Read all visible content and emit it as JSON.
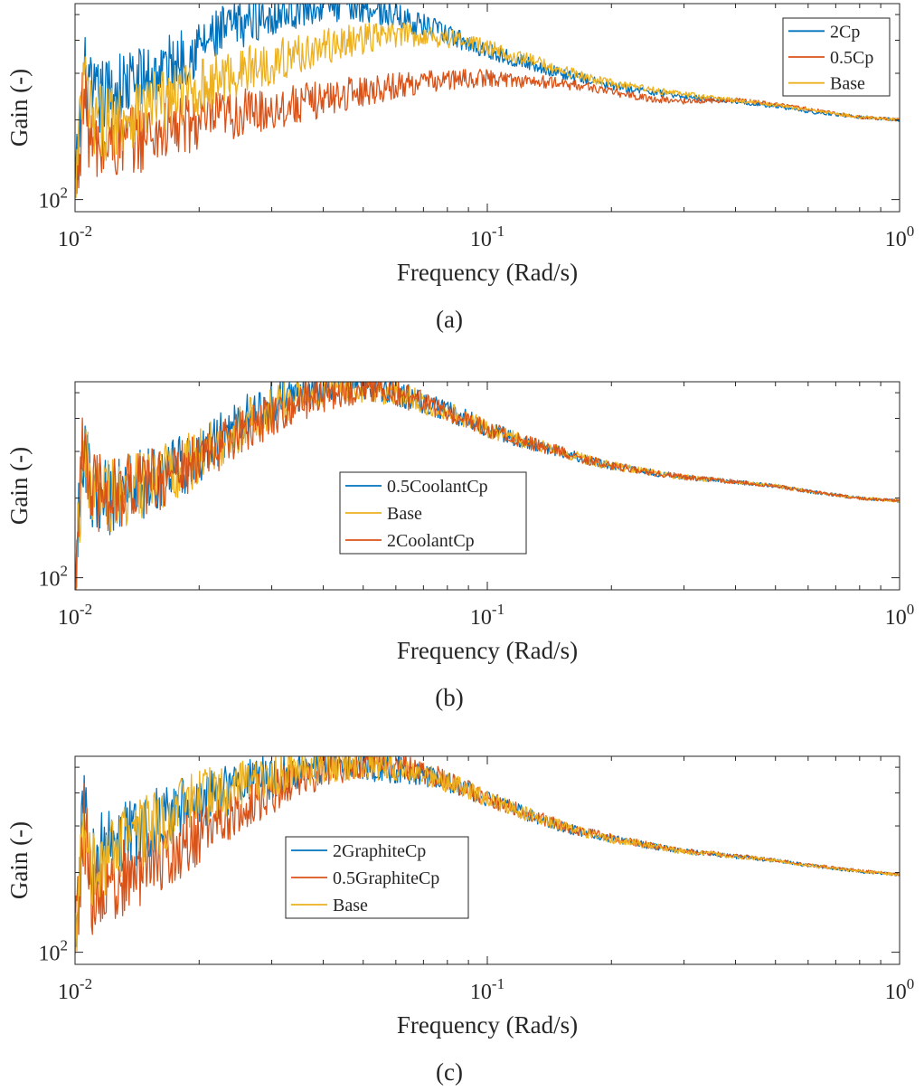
{
  "figure": {
    "colors": {
      "blue": "#0072BD",
      "orange": "#D95319",
      "yellow": "#EDB120",
      "axis": "#262626"
    }
  },
  "chart_data": [
    {
      "type": "line",
      "panel_label": "(a)",
      "xlabel": "Frequency (Rad/s)",
      "ylabel": "Gain (-)",
      "xscale": "log",
      "yscale": "log",
      "xlim": [
        0.01,
        1
      ],
      "ylim": [
        90,
        550
      ],
      "xticks": [
        {
          "base": "10",
          "exp": "-2"
        },
        {
          "base": "10",
          "exp": "-1"
        },
        {
          "base": "10",
          "exp": "0"
        }
      ],
      "yticks": [
        {
          "base": "10",
          "exp": "2"
        }
      ],
      "legend_position": "top-right",
      "series": [
        {
          "name": "2Cp",
          "color": "#0072BD",
          "x": [
            0.01,
            0.0105,
            0.011,
            0.012,
            0.013,
            0.015,
            0.017,
            0.02,
            0.023,
            0.026,
            0.03,
            0.035,
            0.04,
            0.045,
            0.05,
            0.056,
            0.063,
            0.07,
            0.08,
            0.09,
            0.1,
            0.12,
            0.15,
            0.18,
            0.2,
            0.25,
            0.3,
            0.4,
            0.5,
            0.6,
            0.8,
            1.0
          ],
          "y": [
            100,
            300,
            230,
            250,
            265,
            290,
            320,
            380,
            430,
            470,
            505,
            530,
            545,
            545,
            535,
            510,
            480,
            455,
            420,
            390,
            365,
            335,
            300,
            280,
            268,
            255,
            245,
            235,
            225,
            215,
            205,
            200
          ]
        },
        {
          "name": "0.5Cp",
          "color": "#D95319",
          "x": [
            0.01,
            0.0105,
            0.011,
            0.012,
            0.013,
            0.015,
            0.017,
            0.02,
            0.023,
            0.026,
            0.03,
            0.035,
            0.04,
            0.045,
            0.05,
            0.056,
            0.063,
            0.07,
            0.08,
            0.09,
            0.1,
            0.12,
            0.15,
            0.18,
            0.2,
            0.25,
            0.3,
            0.4,
            0.5,
            0.6,
            0.8,
            1.0
          ],
          "y": [
            95,
            260,
            150,
            160,
            165,
            175,
            185,
            195,
            205,
            212,
            220,
            230,
            240,
            250,
            258,
            265,
            272,
            278,
            283,
            286,
            288,
            282,
            275,
            265,
            255,
            240,
            235,
            238,
            230,
            220,
            205,
            200
          ]
        },
        {
          "name": "Base",
          "color": "#EDB120",
          "x": [
            0.01,
            0.0105,
            0.011,
            0.012,
            0.013,
            0.015,
            0.017,
            0.02,
            0.023,
            0.026,
            0.03,
            0.035,
            0.04,
            0.045,
            0.05,
            0.056,
            0.063,
            0.07,
            0.08,
            0.09,
            0.1,
            0.12,
            0.15,
            0.18,
            0.2,
            0.25,
            0.3,
            0.4,
            0.5,
            0.6,
            0.8,
            1.0
          ],
          "y": [
            100,
            290,
            190,
            200,
            210,
            225,
            240,
            265,
            290,
            310,
            330,
            355,
            375,
            392,
            405,
            415,
            420,
            418,
            410,
            395,
            375,
            345,
            310,
            285,
            275,
            260,
            250,
            237,
            228,
            218,
            205,
            200
          ]
        }
      ]
    },
    {
      "type": "line",
      "panel_label": "(b)",
      "xlabel": "Frequency (Rad/s)",
      "ylabel": "Gain (-)",
      "xscale": "log",
      "yscale": "log",
      "xlim": [
        0.01,
        1
      ],
      "ylim": [
        90,
        550
      ],
      "xticks": [
        {
          "base": "10",
          "exp": "-2"
        },
        {
          "base": "10",
          "exp": "-1"
        },
        {
          "base": "10",
          "exp": "0"
        }
      ],
      "yticks": [
        {
          "base": "10",
          "exp": "2"
        }
      ],
      "legend_position": "center-left",
      "series": [
        {
          "name": "0.5CoolantCp",
          "color": "#0072BD",
          "x": [
            0.01,
            0.0105,
            0.011,
            0.012,
            0.013,
            0.015,
            0.017,
            0.02,
            0.023,
            0.026,
            0.03,
            0.035,
            0.04,
            0.045,
            0.05,
            0.056,
            0.063,
            0.07,
            0.08,
            0.09,
            0.1,
            0.12,
            0.15,
            0.18,
            0.2,
            0.25,
            0.3,
            0.4,
            0.5,
            0.6,
            0.8,
            1.0
          ],
          "y": [
            95,
            330,
            190,
            200,
            215,
            230,
            255,
            290,
            340,
            400,
            455,
            500,
            530,
            540,
            535,
            515,
            490,
            460,
            425,
            395,
            365,
            330,
            300,
            275,
            265,
            250,
            240,
            230,
            222,
            212,
            200,
            195
          ]
        },
        {
          "name": "Base",
          "color": "#EDB120",
          "x": [
            0.01,
            0.0105,
            0.011,
            0.012,
            0.013,
            0.015,
            0.017,
            0.02,
            0.023,
            0.026,
            0.03,
            0.035,
            0.04,
            0.045,
            0.05,
            0.056,
            0.063,
            0.07,
            0.08,
            0.09,
            0.1,
            0.12,
            0.15,
            0.18,
            0.2,
            0.25,
            0.3,
            0.4,
            0.5,
            0.6,
            0.8,
            1.0
          ],
          "y": [
            100,
            320,
            200,
            205,
            215,
            230,
            250,
            285,
            330,
            385,
            435,
            480,
            510,
            525,
            525,
            510,
            485,
            458,
            425,
            395,
            365,
            330,
            300,
            275,
            265,
            250,
            240,
            230,
            222,
            212,
            200,
            195
          ]
        },
        {
          "name": "2CoolantCp",
          "color": "#D95319",
          "x": [
            0.01,
            0.0105,
            0.011,
            0.012,
            0.013,
            0.015,
            0.017,
            0.02,
            0.023,
            0.026,
            0.03,
            0.035,
            0.04,
            0.045,
            0.05,
            0.056,
            0.063,
            0.07,
            0.08,
            0.09,
            0.1,
            0.12,
            0.15,
            0.18,
            0.2,
            0.25,
            0.3,
            0.4,
            0.5,
            0.6,
            0.8,
            1.0
          ],
          "y": [
            105,
            340,
            205,
            210,
            215,
            228,
            245,
            275,
            315,
            365,
            415,
            460,
            495,
            515,
            520,
            510,
            485,
            458,
            425,
            395,
            365,
            330,
            300,
            275,
            265,
            250,
            240,
            230,
            222,
            212,
            200,
            195
          ]
        }
      ]
    },
    {
      "type": "line",
      "panel_label": "(c)",
      "xlabel": "Frequency (Rad/s)",
      "ylabel": "Gain (-)",
      "xscale": "log",
      "yscale": "log",
      "xlim": [
        0.01,
        1
      ],
      "ylim": [
        90,
        550
      ],
      "xticks": [
        {
          "base": "10",
          "exp": "-2"
        },
        {
          "base": "10",
          "exp": "-1"
        },
        {
          "base": "10",
          "exp": "0"
        }
      ],
      "yticks": [
        {
          "base": "10",
          "exp": "2"
        }
      ],
      "legend_position": "center-left",
      "series": [
        {
          "name": "2GraphiteCp",
          "color": "#0072BD",
          "x": [
            0.01,
            0.0105,
            0.011,
            0.012,
            0.013,
            0.015,
            0.017,
            0.02,
            0.023,
            0.026,
            0.03,
            0.035,
            0.04,
            0.045,
            0.05,
            0.056,
            0.063,
            0.07,
            0.08,
            0.09,
            0.1,
            0.12,
            0.15,
            0.18,
            0.2,
            0.25,
            0.3,
            0.4,
            0.5,
            0.6,
            0.8,
            1.0
          ],
          "y": [
            120,
            330,
            230,
            255,
            275,
            300,
            330,
            370,
            400,
            430,
            460,
            490,
            505,
            510,
            505,
            495,
            485,
            470,
            440,
            410,
            380,
            340,
            300,
            278,
            268,
            252,
            240,
            230,
            222,
            213,
            202,
            196
          ]
        },
        {
          "name": "0.5GraphiteCp",
          "color": "#D95319",
          "x": [
            0.01,
            0.0105,
            0.011,
            0.012,
            0.013,
            0.015,
            0.017,
            0.02,
            0.023,
            0.026,
            0.03,
            0.035,
            0.04,
            0.045,
            0.05,
            0.056,
            0.063,
            0.07,
            0.08,
            0.09,
            0.1,
            0.12,
            0.15,
            0.18,
            0.2,
            0.25,
            0.3,
            0.4,
            0.5,
            0.6,
            0.8,
            1.0
          ],
          "y": [
            100,
            310,
            165,
            175,
            190,
            210,
            235,
            270,
            315,
            360,
            405,
            450,
            485,
            505,
            515,
            515,
            500,
            480,
            445,
            412,
            382,
            342,
            302,
            280,
            270,
            253,
            242,
            231,
            223,
            214,
            203,
            197
          ]
        },
        {
          "name": "Base",
          "color": "#EDB120",
          "x": [
            0.01,
            0.0105,
            0.011,
            0.012,
            0.013,
            0.015,
            0.017,
            0.02,
            0.023,
            0.026,
            0.03,
            0.035,
            0.04,
            0.045,
            0.05,
            0.056,
            0.063,
            0.07,
            0.08,
            0.09,
            0.1,
            0.12,
            0.15,
            0.18,
            0.2,
            0.25,
            0.3,
            0.4,
            0.5,
            0.6,
            0.8,
            1.0
          ],
          "y": [
            100,
            320,
            210,
            235,
            260,
            290,
            330,
            375,
            410,
            440,
            470,
            495,
            510,
            515,
            515,
            505,
            490,
            472,
            440,
            410,
            380,
            340,
            302,
            278,
            268,
            252,
            240,
            230,
            222,
            213,
            202,
            196
          ]
        }
      ]
    }
  ]
}
